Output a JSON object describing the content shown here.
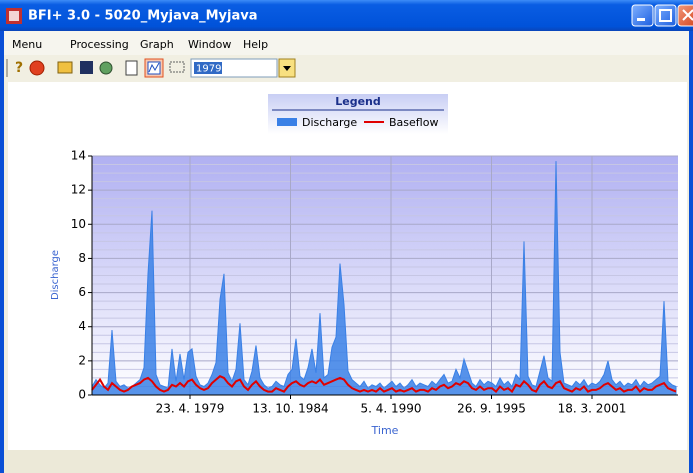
{
  "window": {
    "title": "BFI+ 3.0 - 5020_Myjava_Myjava"
  },
  "menu": [
    "Menu",
    "Processing",
    "Graph",
    "Window",
    "Help"
  ],
  "toolbar": {
    "year": "1979"
  },
  "chart_data": {
    "type": "line",
    "legend_title": "Legend",
    "xlabel": "Time",
    "ylabel": "Discharge",
    "ylim": [
      0,
      14
    ],
    "yticks": [
      0,
      2,
      4,
      6,
      8,
      10,
      12,
      14
    ],
    "xticks": [
      "23. 4. 1979",
      "13. 10. 1984",
      "5. 4. 1990",
      "26. 9. 1995",
      "18. 3. 2001"
    ],
    "grid": true,
    "series": [
      {
        "name": "Discharge",
        "color": "#3a80e6",
        "values": [
          0.5,
          0.9,
          0.6,
          0.4,
          0.7,
          3.8,
          0.8,
          0.5,
          0.6,
          0.4,
          0.5,
          0.7,
          0.9,
          1.6,
          7.1,
          10.8,
          1.2,
          0.6,
          0.5,
          0.4,
          2.7,
          0.8,
          2.4,
          0.9,
          2.5,
          2.7,
          1.1,
          0.6,
          0.5,
          0.7,
          1.2,
          1.9,
          5.6,
          7.1,
          1.3,
          0.8,
          1.5,
          4.2,
          0.9,
          0.6,
          1.4,
          2.9,
          1.0,
          0.6,
          0.4,
          0.5,
          0.8,
          0.6,
          0.5,
          1.2,
          1.5,
          3.3,
          1.1,
          0.9,
          1.6,
          2.7,
          1.3,
          4.8,
          1.0,
          1.2,
          2.8,
          3.4,
          7.7,
          5.3,
          1.4,
          0.9,
          0.7,
          0.5,
          0.8,
          0.4,
          0.6,
          0.5,
          0.7,
          0.4,
          0.6,
          0.8,
          0.5,
          0.7,
          0.4,
          0.6,
          0.9,
          0.5,
          0.7,
          0.6,
          0.5,
          0.8,
          0.6,
          0.9,
          1.2,
          0.7,
          0.8,
          1.5,
          1.0,
          2.1,
          1.4,
          0.7,
          0.5,
          0.9,
          0.6,
          0.8,
          0.7,
          0.5,
          1.0,
          0.6,
          0.8,
          0.5,
          1.2,
          0.9,
          9.0,
          1.1,
          0.6,
          0.5,
          1.4,
          2.3,
          1.0,
          0.8,
          13.7,
          2.5,
          0.7,
          0.6,
          0.5,
          0.8,
          0.6,
          0.9,
          0.5,
          0.7,
          0.6,
          0.8,
          1.2,
          2.0,
          0.9,
          0.6,
          0.8,
          0.5,
          0.7,
          0.6,
          0.9,
          0.5,
          0.8,
          0.6,
          0.7,
          0.9,
          1.1,
          5.5,
          0.8,
          0.6,
          0.5
        ]
      },
      {
        "name": "Baseflow",
        "color": "#e00000",
        "values": [
          0.3,
          0.6,
          0.9,
          0.5,
          0.3,
          0.7,
          0.5,
          0.3,
          0.2,
          0.3,
          0.5,
          0.6,
          0.7,
          0.9,
          1.0,
          0.8,
          0.5,
          0.3,
          0.2,
          0.3,
          0.6,
          0.5,
          0.7,
          0.5,
          0.8,
          0.9,
          0.6,
          0.4,
          0.3,
          0.4,
          0.7,
          0.9,
          1.1,
          1.0,
          0.7,
          0.5,
          0.8,
          0.9,
          0.5,
          0.3,
          0.6,
          0.8,
          0.5,
          0.3,
          0.2,
          0.2,
          0.4,
          0.3,
          0.2,
          0.5,
          0.7,
          0.8,
          0.6,
          0.5,
          0.7,
          0.8,
          0.7,
          0.9,
          0.6,
          0.7,
          0.8,
          0.9,
          1.0,
          0.9,
          0.6,
          0.4,
          0.3,
          0.2,
          0.3,
          0.2,
          0.3,
          0.2,
          0.4,
          0.2,
          0.3,
          0.4,
          0.2,
          0.3,
          0.2,
          0.3,
          0.4,
          0.2,
          0.3,
          0.3,
          0.2,
          0.4,
          0.3,
          0.5,
          0.6,
          0.4,
          0.5,
          0.7,
          0.6,
          0.8,
          0.7,
          0.4,
          0.3,
          0.5,
          0.3,
          0.4,
          0.4,
          0.2,
          0.5,
          0.3,
          0.4,
          0.2,
          0.6,
          0.5,
          0.8,
          0.6,
          0.3,
          0.2,
          0.6,
          0.8,
          0.5,
          0.4,
          0.7,
          0.8,
          0.4,
          0.3,
          0.2,
          0.4,
          0.3,
          0.5,
          0.2,
          0.3,
          0.3,
          0.4,
          0.6,
          0.7,
          0.5,
          0.3,
          0.4,
          0.2,
          0.3,
          0.3,
          0.5,
          0.2,
          0.4,
          0.3,
          0.3,
          0.5,
          0.6,
          0.7,
          0.4,
          0.3,
          0.2
        ]
      }
    ]
  }
}
